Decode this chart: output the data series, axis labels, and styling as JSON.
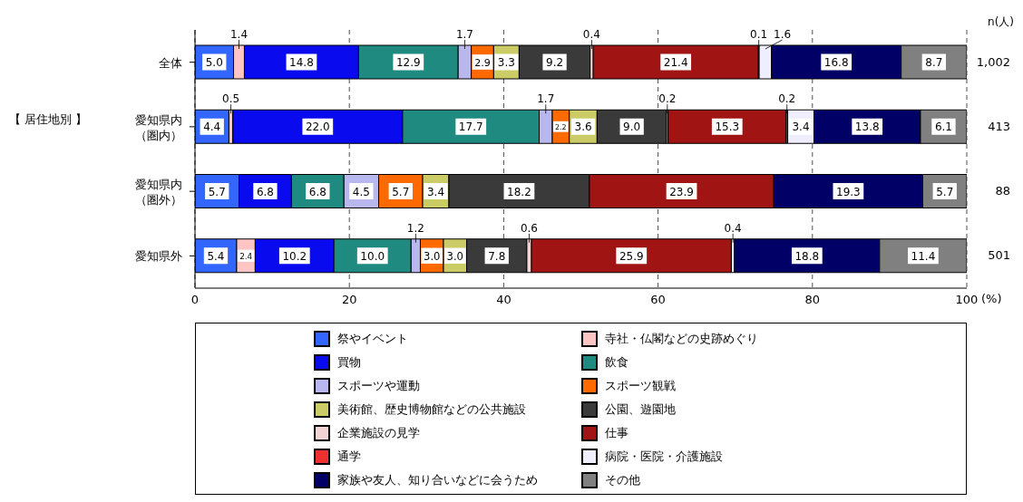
{
  "chart_data": {
    "type": "bar",
    "orientation": "horizontal",
    "stacked": true,
    "categories": [
      "全体",
      "愛知県内（圏内）",
      "愛知県内（圏外）",
      "愛知県外"
    ],
    "xlabel": "(%)",
    "xlim": [
      0,
      100
    ],
    "xticks": [
      0,
      20,
      40,
      60,
      80,
      100
    ],
    "grid": "x",
    "legend": "bottom",
    "annotations": [
      "【 居住地別 】",
      "n(人)",
      "1,002",
      "413",
      "88",
      "501"
    ],
    "series": [
      {
        "name": "祭やイベント",
        "color": "#3366ff",
        "values": [
          5.0,
          4.4,
          5.7,
          5.4
        ],
        "value_labels": [
          "5.0",
          "4.4",
          "5.7",
          "5.4"
        ]
      },
      {
        "name": "寺社・仏閣などの史跡めぐり",
        "color": "#ffc4c4",
        "values": [
          1.4,
          0.5,
          null,
          2.4
        ],
        "value_labels": [
          "1.4",
          "0.5",
          null,
          "2.4"
        ]
      },
      {
        "name": "買物",
        "color": "#0a0aee",
        "values": [
          14.8,
          22.0,
          6.8,
          10.2
        ],
        "value_labels": [
          "14.8",
          "22.0",
          "6.8",
          "10.2"
        ]
      },
      {
        "name": "飲食",
        "color": "#1f8a80",
        "values": [
          12.9,
          17.7,
          6.8,
          10.0
        ],
        "value_labels": [
          "12.9",
          "17.7",
          "6.8",
          "10.0"
        ]
      },
      {
        "name": "スポーツや運動",
        "color": "#b8b8ee",
        "values": [
          1.7,
          1.7,
          4.5,
          1.2
        ],
        "value_labels": [
          "1.7",
          "1.7",
          "4.5",
          "1.2"
        ]
      },
      {
        "name": "スポーツ観戦",
        "color": "#ff6a00",
        "values": [
          2.9,
          2.2,
          5.7,
          3.0
        ],
        "value_labels": [
          "2.9",
          "2.2",
          "5.7",
          "3.0"
        ]
      },
      {
        "name": "美術館、歴史博物館などの公共施設",
        "color": "#cccc66",
        "values": [
          3.3,
          3.6,
          3.4,
          3.0
        ],
        "value_labels": [
          "3.3",
          "3.6",
          "3.4",
          "3.0"
        ]
      },
      {
        "name": "公園、遊園地",
        "color": "#3a3a3a",
        "values": [
          9.2,
          9.0,
          18.2,
          7.8
        ],
        "value_labels": [
          "9.2",
          "9.0",
          "18.2",
          "7.8"
        ]
      },
      {
        "name": "企業施設の見学",
        "color": "#f2d4d4",
        "values": [
          0.4,
          0.2,
          null,
          0.6
        ],
        "value_labels": [
          "0.4",
          "0.2",
          null,
          "0.6"
        ]
      },
      {
        "name": "仕事",
        "color": "#a01414",
        "values": [
          21.4,
          15.3,
          23.9,
          25.9
        ],
        "value_labels": [
          "21.4",
          "15.3",
          "23.9",
          "25.9"
        ]
      },
      {
        "name": "通学",
        "color": "#ee3030",
        "values": [
          0.1,
          0.2,
          null,
          null
        ],
        "value_labels": [
          "0.1",
          "0.2",
          null,
          null
        ]
      },
      {
        "name": "病院・医院・介護施設",
        "color": "#eeeeff",
        "values": [
          1.6,
          3.4,
          null,
          0.4
        ],
        "value_labels": [
          "1.6",
          "3.4",
          null,
          "0.4"
        ]
      },
      {
        "name": "家族や友人、知り合いなどに会うため",
        "color": "#000066",
        "values": [
          16.8,
          13.8,
          19.3,
          18.8
        ],
        "value_labels": [
          "16.8",
          "13.8",
          "19.3",
          "18.8"
        ]
      },
      {
        "name": "その他",
        "color": "#808080",
        "values": [
          8.7,
          6.1,
          5.7,
          11.4
        ],
        "value_labels": [
          "8.7",
          "6.1",
          "5.7",
          "11.4"
        ]
      }
    ]
  }
}
